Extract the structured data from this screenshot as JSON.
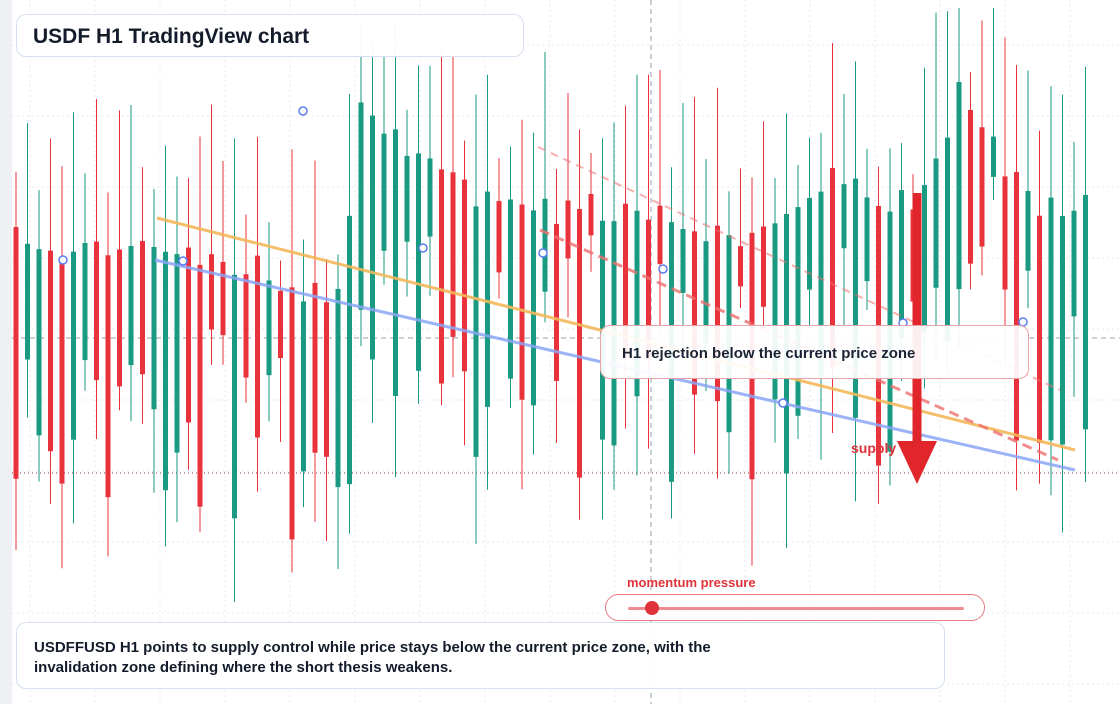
{
  "header": {
    "title": "USDF H1 TradingView chart"
  },
  "callout": {
    "text": "H1 rejection below the current price zone"
  },
  "annotations": {
    "supply_label": "supply",
    "momentum_label": "momentum pressure",
    "momentum_level": 0.07
  },
  "summary": {
    "text": "USDFFUSD H1 points to supply control while price stays below the current price zone, with the invalidation zone defining where the short thesis weakens."
  },
  "colors": {
    "bull": "#1a9a82",
    "bear": "#e8333d",
    "trend_orange": "#f5b85a",
    "trend_blue": "#8aa6f5",
    "dashed_red": "#ee7070",
    "arrow": "#e0252b",
    "grid": "#e6e9ef"
  },
  "chart_data": {
    "type": "candlestick",
    "title": "USDF H1 TradingView chart",
    "timeframe": "H1",
    "bars": 94,
    "trend_direction": "down",
    "grid": true,
    "current_price_line": "dotted, near bottom of range",
    "overlays": [
      "orange descending trendline",
      "blue descending trendline with anchor points",
      "red dashed descending channel lines",
      "red down arrow marking supply"
    ],
    "axes_labels": "none printed"
  }
}
